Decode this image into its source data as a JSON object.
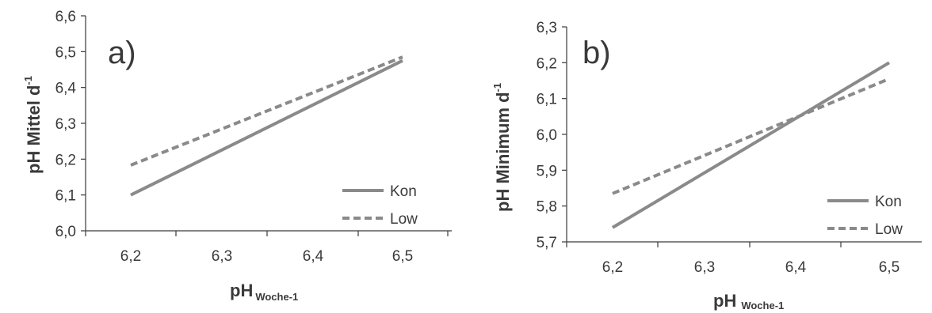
{
  "colors": {
    "kon": "#8a8a8a",
    "low": "#8a8a8a",
    "axis": "#3a3a3a",
    "text": "#3a3a3a"
  },
  "chart_data": [
    {
      "type": "line",
      "panel_label": "a)",
      "ylabel": "pH Mittel d",
      "ylabel_sup": "-1",
      "xlabel": "pH",
      "xlabel_sub": "Woche-1",
      "ylim": [
        6.0,
        6.6
      ],
      "yticks": [
        "6,0",
        "6,1",
        "6,2",
        "6,3",
        "6,4",
        "6,5",
        "6,6"
      ],
      "xlim": [
        6.15,
        6.55
      ],
      "xticks": [
        "6,2",
        "6,3",
        "6,4",
        "6,5"
      ],
      "legend_position": "bottom-right",
      "series": [
        {
          "name": "Kon",
          "style": "solid",
          "x": [
            6.2,
            6.5
          ],
          "y": [
            6.1,
            6.475
          ]
        },
        {
          "name": "Low",
          "style": "dashed",
          "x": [
            6.2,
            6.5
          ],
          "y": [
            6.183,
            6.485
          ]
        }
      ]
    },
    {
      "type": "line",
      "panel_label": "b)",
      "ylabel": "pH Minimum d",
      "ylabel_sup": "-1",
      "xlabel": "pH",
      "xlabel_sub": "Woche-1",
      "ylim": [
        5.7,
        6.3
      ],
      "yticks": [
        "5,7",
        "5,8",
        "5,9",
        "6,0",
        "6,1",
        "6,2",
        "6,3"
      ],
      "xlim": [
        6.15,
        6.55
      ],
      "xticks": [
        "6,2",
        "6,3",
        "6,4",
        "6,5"
      ],
      "legend_position": "bottom-right",
      "series": [
        {
          "name": "Kon",
          "style": "solid",
          "x": [
            6.2,
            6.5
          ],
          "y": [
            5.74,
            6.2
          ]
        },
        {
          "name": "Low",
          "style": "dashed",
          "x": [
            6.2,
            6.5
          ],
          "y": [
            5.835,
            6.155
          ]
        }
      ]
    }
  ]
}
